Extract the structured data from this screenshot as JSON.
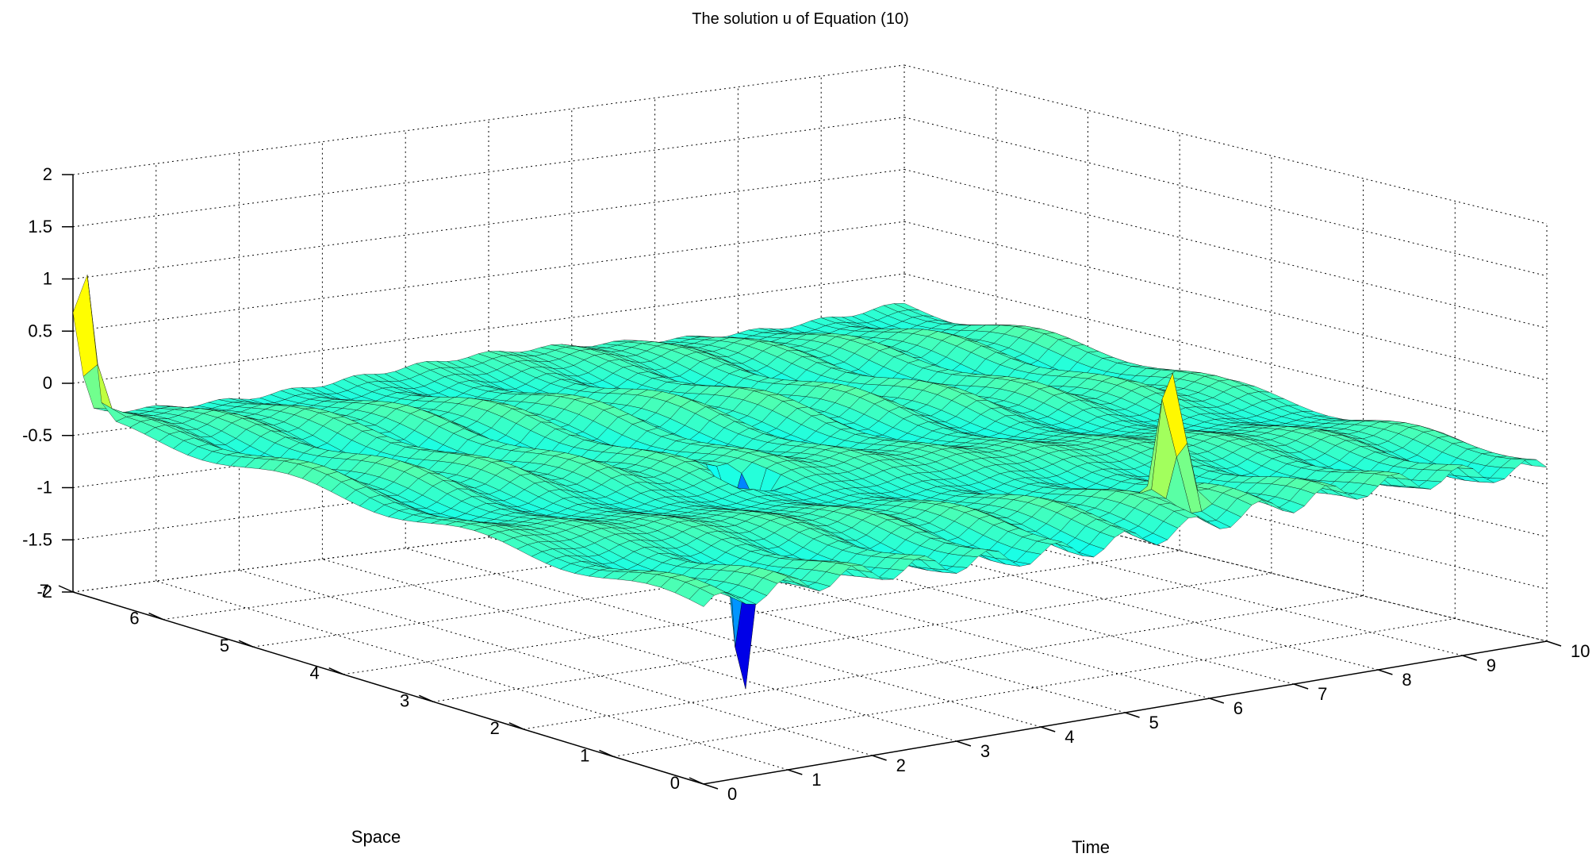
{
  "chart_data": {
    "type": "surface",
    "title": "The solution u of Equation (10)",
    "xlabel": "Time",
    "ylabel": "Space",
    "zlabel": "",
    "xlim": [
      0,
      10
    ],
    "ylim": [
      0,
      7
    ],
    "zlim": [
      -2,
      2
    ],
    "x_ticks": [
      "0",
      "1",
      "2",
      "3",
      "4",
      "5",
      "6",
      "7",
      "8",
      "9",
      "10"
    ],
    "y_ticks": [
      "0",
      "1",
      "2",
      "3",
      "4",
      "5",
      "6",
      "7"
    ],
    "z_ticks": [
      "-2",
      "-1.5",
      "-1",
      "-0.5",
      "0",
      "0.5",
      "1",
      "1.5",
      "2"
    ],
    "grid": true,
    "colormap": "jet",
    "surface": {
      "baseline": -0.3,
      "oscillation_amplitude": 0.1,
      "oscillation_period_time": 0.8,
      "peaks": [
        {
          "time": 0.0,
          "space": 6.9,
          "value": 1.3
        },
        {
          "time": 3.7,
          "space": 3.0,
          "value": -2.8
        },
        {
          "time": 6.2,
          "space": 0.6,
          "value": 1.3
        }
      ]
    },
    "colors": {
      "low": "#00008f",
      "mid": "#80ff80",
      "high": "#800000"
    }
  }
}
